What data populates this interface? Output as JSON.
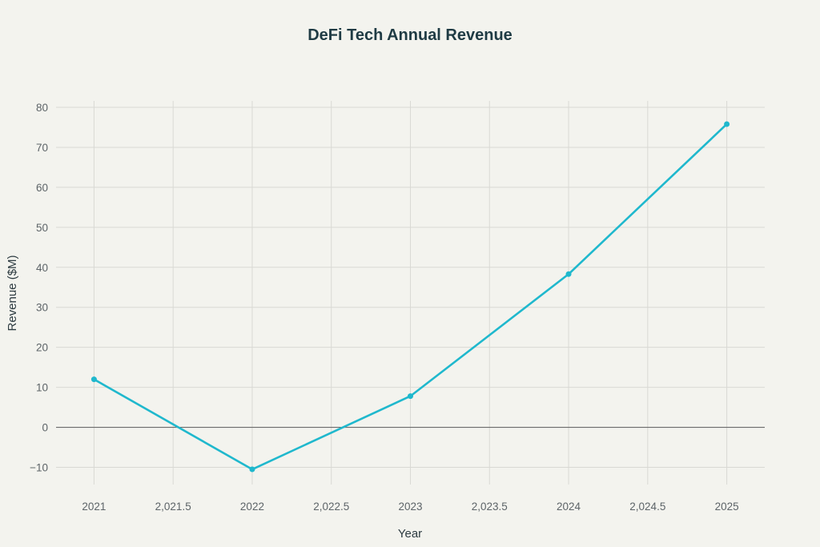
{
  "chart_data": {
    "type": "line",
    "title": "DeFi Tech Annual Revenue",
    "xlabel": "Year",
    "ylabel": "Revenue ($M)",
    "x": [
      2021,
      2022,
      2023,
      2024,
      2025
    ],
    "values": [
      12.0,
      -10.5,
      7.8,
      38.3,
      75.8
    ],
    "xlim": [
      2020.76,
      2025.24
    ],
    "ylim": [
      -14.3,
      81.6
    ],
    "xticks": [
      2021,
      2021.5,
      2022,
      2022.5,
      2023,
      2023.5,
      2024,
      2024.5,
      2025
    ],
    "xtick_labels": [
      "2021",
      "2,021.5",
      "2022",
      "2,022.5",
      "2023",
      "2,023.5",
      "2024",
      "2,024.5",
      "2025"
    ],
    "yticks": [
      -10,
      0,
      10,
      20,
      30,
      40,
      50,
      60,
      70,
      80
    ],
    "ytick_labels": [
      "−10",
      "0",
      "10",
      "20",
      "30",
      "40",
      "50",
      "60",
      "70",
      "80"
    ],
    "grid": true,
    "markers": true,
    "colors": {
      "line": "#1fb8cd",
      "grid": "#d9d9d4",
      "zero_line": "#6b6b6b",
      "background": "#f3f3ee"
    }
  }
}
